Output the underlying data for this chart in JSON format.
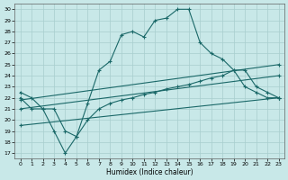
{
  "xlabel": "Humidex (Indice chaleur)",
  "bg_color": "#c8e8e8",
  "grid_color": "#a8cece",
  "line_color": "#1a6868",
  "xlim": [
    -0.5,
    23.5
  ],
  "ylim": [
    16.5,
    30.5
  ],
  "yticks": [
    17,
    18,
    19,
    20,
    21,
    22,
    23,
    24,
    25,
    26,
    27,
    28,
    29,
    30
  ],
  "xticks": [
    0,
    1,
    2,
    3,
    4,
    5,
    6,
    7,
    8,
    9,
    10,
    11,
    12,
    13,
    14,
    15,
    16,
    17,
    18,
    19,
    20,
    21,
    22,
    23
  ],
  "series": [
    {
      "x": [
        0,
        1,
        2,
        3,
        4,
        5,
        6,
        7,
        8,
        9,
        10,
        11,
        12,
        13,
        14,
        15,
        16,
        17,
        18,
        19,
        20,
        21,
        22,
        23
      ],
      "y": [
        22.5,
        22.0,
        21.0,
        21.0,
        19.0,
        18.5,
        21.5,
        24.5,
        25.3,
        27.7,
        28.0,
        27.5,
        29.0,
        29.2,
        30.0,
        30.0,
        27.0,
        26.0,
        25.5,
        24.5,
        23.0,
        22.5,
        22.0,
        22.0
      ]
    },
    {
      "x": [
        0,
        23
      ],
      "y": [
        21.8,
        25.0
      ]
    },
    {
      "x": [
        0,
        23
      ],
      "y": [
        21.0,
        24.0
      ]
    },
    {
      "x": [
        0,
        23
      ],
      "y": [
        19.5,
        22.0
      ]
    },
    {
      "x": [
        0,
        1,
        2,
        3,
        4,
        5,
        6,
        7,
        8,
        9,
        10,
        11,
        12,
        13,
        14,
        15,
        16,
        17,
        18,
        19,
        20,
        21,
        22,
        23
      ],
      "y": [
        22.0,
        21.0,
        21.0,
        19.0,
        17.0,
        18.5,
        20.0,
        21.0,
        21.5,
        21.8,
        22.0,
        22.3,
        22.5,
        22.8,
        23.0,
        23.2,
        23.5,
        23.8,
        24.0,
        24.5,
        24.5,
        23.0,
        22.5,
        22.0
      ]
    }
  ]
}
